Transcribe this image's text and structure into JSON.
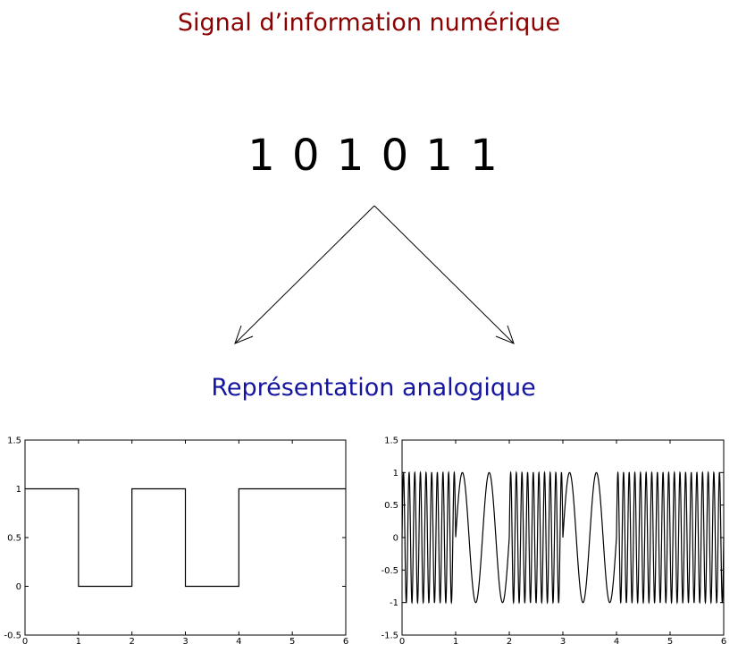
{
  "header": {
    "title": "Signal d’information numérique",
    "title_color": "#8b0000"
  },
  "bits": {
    "sequence": "1 0 1 0 1 1"
  },
  "section": {
    "subtitle": "Représentation analogique",
    "subtitle_color": "#1515a0"
  },
  "chart_data": [
    {
      "type": "line",
      "x": [
        0,
        1,
        1,
        2,
        2,
        3,
        3,
        4,
        4,
        6
      ],
      "y": [
        1,
        1,
        0,
        0,
        1,
        1,
        0,
        0,
        1,
        1
      ],
      "xlim": [
        0,
        6
      ],
      "ylim": [
        -0.5,
        1.5
      ],
      "xticks": [
        "0",
        "1",
        "2",
        "3",
        "4",
        "5",
        "6"
      ],
      "yticks": [
        "-0.5",
        "0",
        "0.5",
        "1",
        "1.5"
      ]
    },
    {
      "type": "line",
      "bits": [
        1,
        0,
        1,
        0,
        1,
        1
      ],
      "high_cycles_per_bit": 9.5,
      "low_cycles_per_bit": 2,
      "xlim": [
        0,
        6
      ],
      "ylim": [
        -1.5,
        1.5
      ],
      "xticks": [
        "0",
        "1",
        "2",
        "3",
        "4",
        "5",
        "6"
      ],
      "yticks": [
        "-1.5",
        "-1",
        "-0.5",
        "0",
        "0.5",
        "1",
        "1.5"
      ]
    }
  ]
}
